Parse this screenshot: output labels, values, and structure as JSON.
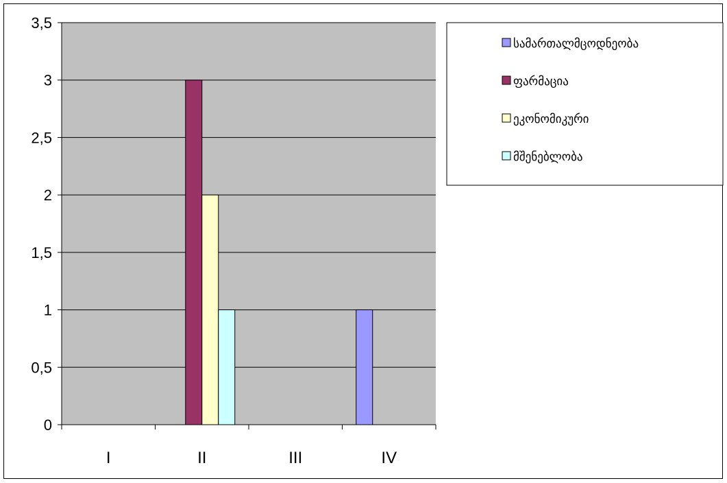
{
  "chart_data": {
    "type": "bar",
    "categories": [
      "I",
      "II",
      "III",
      "IV"
    ],
    "series": [
      {
        "name": "სამართალმცოდნეობა",
        "values": [
          0,
          0,
          0,
          1
        ],
        "color": "#9999ff"
      },
      {
        "name": "ფარმაცია",
        "values": [
          0,
          3,
          0,
          0
        ],
        "color": "#993366"
      },
      {
        "name": "ეკონომიკური",
        "values": [
          0,
          2,
          0,
          0
        ],
        "color": "#ffffcc"
      },
      {
        "name": "მშენებლობა",
        "values": [
          0,
          1,
          0,
          0
        ],
        "color": "#ccffff"
      }
    ],
    "yticks": [
      "0",
      "0,5",
      "1",
      "1,5",
      "2",
      "2,5",
      "3",
      "3,5"
    ],
    "ylim": [
      0,
      3.5
    ],
    "grid": true,
    "plot_background": "#c0c0c0",
    "legend_position": "right-top"
  }
}
